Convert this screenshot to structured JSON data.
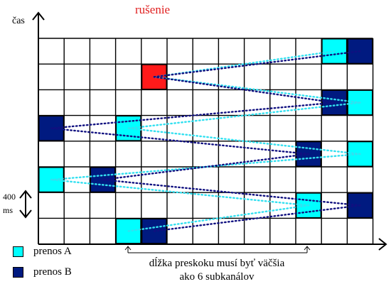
{
  "axis": {
    "y_label": "čas"
  },
  "grid": {
    "cols": 13,
    "rows": 8
  },
  "disturbance": {
    "label": "rušenie",
    "cell": [
      4,
      1
    ],
    "color": "#ff1a1a"
  },
  "slot_duration": {
    "value": "400",
    "unit": "ms"
  },
  "legend": [
    {
      "label": "prenos A",
      "color": "#00ffff"
    },
    {
      "label": "prenos B",
      "color": "#001a80"
    }
  ],
  "hop_note": {
    "line1": "dĺžka preskoku musí byť väčšia",
    "line2": "ako 6 subkanálov"
  },
  "transmissions": {
    "A": {
      "color": "#00ffff",
      "line_color": "#33e0f0",
      "cells": [
        [
          11,
          0
        ],
        [
          12,
          2
        ],
        [
          12,
          4
        ],
        [
          0,
          5
        ],
        [
          10,
          6
        ],
        [
          3,
          7
        ],
        [
          3,
          3
        ]
      ],
      "path": [
        [
          3,
          7
        ],
        [
          10,
          6
        ],
        [
          0,
          5
        ],
        [
          12,
          4
        ],
        [
          3,
          3
        ],
        [
          12,
          2
        ],
        [
          4,
          1
        ],
        [
          11,
          0
        ]
      ]
    },
    "B": {
      "color": "#001a80",
      "line_color": "#101080",
      "cells": [
        [
          12,
          0
        ],
        [
          11,
          2
        ],
        [
          0,
          3
        ],
        [
          10,
          4
        ],
        [
          2,
          5
        ],
        [
          12,
          6
        ],
        [
          4,
          7
        ]
      ],
      "path": [
        [
          4,
          7
        ],
        [
          12,
          6
        ],
        [
          2,
          5
        ],
        [
          10,
          4
        ],
        [
          0,
          3
        ],
        [
          11,
          2
        ],
        [
          4,
          1
        ],
        [
          12,
          0
        ]
      ]
    }
  }
}
